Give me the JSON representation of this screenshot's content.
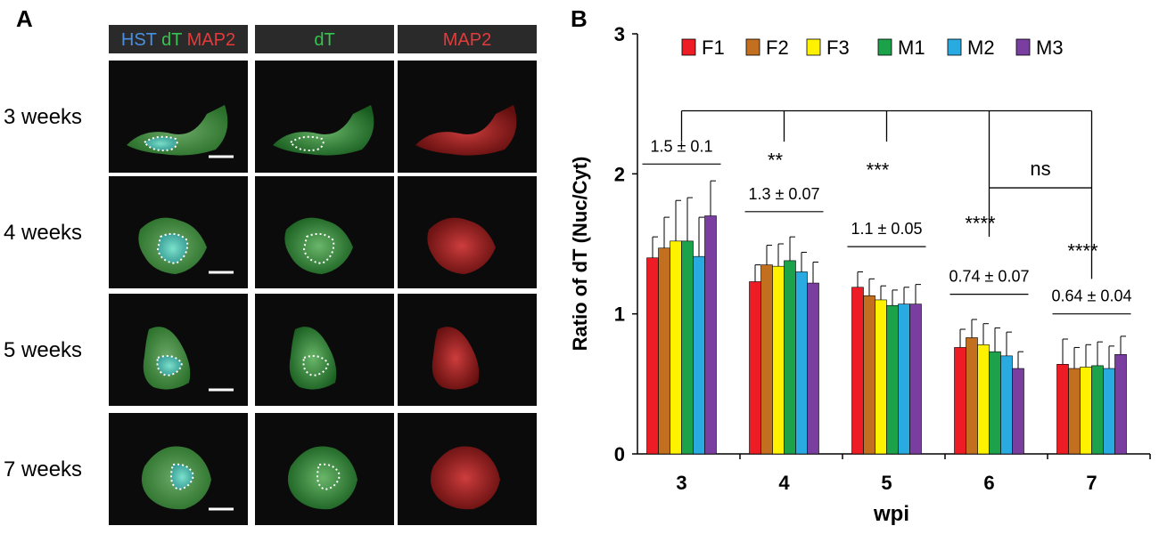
{
  "panel_a": {
    "label": "A",
    "headers": [
      {
        "parts": [
          {
            "text": "HST",
            "color": "#4a8fe0"
          },
          {
            "text": " dT",
            "color": "#38c24f"
          },
          {
            "text": " MAP2",
            "color": "#e23b3b"
          }
        ]
      },
      {
        "parts": [
          {
            "text": "dT",
            "color": "#38c24f"
          }
        ]
      },
      {
        "parts": [
          {
            "text": "MAP2",
            "color": "#e23b3b"
          }
        ]
      }
    ],
    "rows": [
      "3 weeks",
      "4 weeks",
      "5 weeks",
      "7 weeks"
    ]
  },
  "chart_data": {
    "type": "bar",
    "panel_label": "B",
    "xlabel": "wpi",
    "ylabel": "Ratio of dT (Nuc/Cyt)",
    "ylim": [
      0,
      3
    ],
    "yticks": [
      "0",
      "1",
      "2",
      "3"
    ],
    "categories": [
      "3",
      "4",
      "5",
      "6",
      "7"
    ],
    "series": [
      {
        "name": "F1",
        "color": "#ee1c25",
        "values": [
          1.4,
          1.23,
          1.19,
          0.76,
          0.64
        ],
        "errors": [
          0.15,
          0.12,
          0.11,
          0.13,
          0.18
        ]
      },
      {
        "name": "F2",
        "color": "#c2701f",
        "values": [
          1.47,
          1.35,
          1.13,
          0.83,
          0.61
        ],
        "errors": [
          0.22,
          0.14,
          0.12,
          0.13,
          0.15
        ]
      },
      {
        "name": "F3",
        "color": "#fff200",
        "values": [
          1.52,
          1.34,
          1.1,
          0.78,
          0.62
        ],
        "errors": [
          0.29,
          0.16,
          0.1,
          0.15,
          0.16
        ]
      },
      {
        "name": "M1",
        "color": "#1ca24a",
        "values": [
          1.52,
          1.38,
          1.06,
          0.73,
          0.63
        ],
        "errors": [
          0.31,
          0.17,
          0.11,
          0.17,
          0.17
        ]
      },
      {
        "name": "M2",
        "color": "#29abe2",
        "values": [
          1.41,
          1.3,
          1.07,
          0.7,
          0.61
        ],
        "errors": [
          0.28,
          0.14,
          0.12,
          0.17,
          0.16
        ]
      },
      {
        "name": "M3",
        "color": "#7a3ea0",
        "values": [
          1.7,
          1.22,
          1.07,
          0.61,
          0.71
        ],
        "errors": [
          0.25,
          0.15,
          0.14,
          0.12,
          0.13
        ]
      }
    ],
    "group_means": [
      "1.5 ± 0.1",
      "1.3 ± 0.07",
      "1.1 ± 0.05",
      "0.74 ± 0.07",
      "0.64 ± 0.04"
    ],
    "significance": {
      "vs_week3": [
        "**",
        "***",
        "****",
        "****"
      ],
      "week6_vs_week7": "ns"
    },
    "legend_position": "top",
    "grid": false
  }
}
